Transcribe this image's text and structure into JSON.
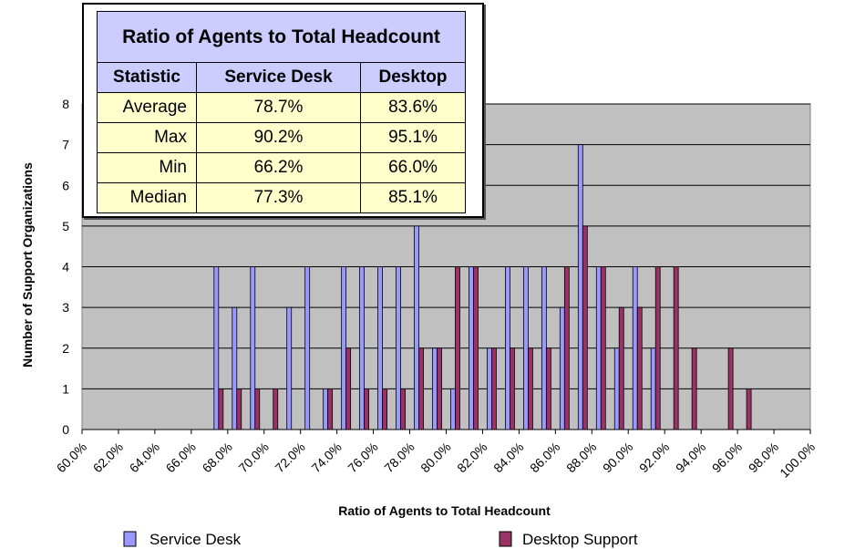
{
  "chart_data": {
    "type": "bar",
    "xlabel": "Ratio of Agents to Total Headcount",
    "ylabel": "Number of Support Organizations",
    "xlim": [
      60.0,
      100.0
    ],
    "x_ticks": [
      "60.0%",
      "62.0%",
      "64.0%",
      "66.0%",
      "68.0%",
      "70.0%",
      "72.0%",
      "74.0%",
      "76.0%",
      "78.0%",
      "80.0%",
      "82.0%",
      "84.0%",
      "86.0%",
      "88.0%",
      "90.0%",
      "92.0%",
      "94.0%",
      "96.0%",
      "98.0%",
      "100.0%"
    ],
    "ylim": [
      0,
      8
    ],
    "y_ticks": [
      0,
      1,
      2,
      3,
      4,
      5,
      6,
      7,
      8
    ],
    "grid": "horizontal",
    "legend_position": "bottom",
    "colors": {
      "plot_background": "#c0c0c0",
      "service_desk": "#9999ff",
      "desktop_support": "#993366"
    },
    "series": [
      {
        "name": "Service Desk",
        "x": [
          67.5,
          68.5,
          69.5,
          71.5,
          72.5,
          73.5,
          74.5,
          75.5,
          76.5,
          77.5,
          78.5,
          79.5,
          80.5,
          81.5,
          82.5,
          83.5,
          84.5,
          85.5,
          86.5,
          87.5,
          88.5,
          89.5,
          90.5,
          91.5
        ],
        "values": [
          4,
          3,
          4,
          3,
          4,
          1,
          4,
          4,
          4,
          4,
          5,
          2,
          1,
          4,
          2,
          4,
          4,
          4,
          3,
          7,
          4,
          2,
          4,
          2
        ]
      },
      {
        "name": "Desktop Support",
        "x": [
          67.5,
          68.5,
          69.5,
          70.5,
          73.5,
          74.5,
          75.5,
          76.5,
          77.5,
          78.5,
          79.5,
          80.5,
          81.5,
          82.5,
          83.5,
          84.5,
          85.5,
          86.5,
          87.5,
          88.5,
          89.5,
          90.5,
          91.5,
          92.5,
          93.5,
          95.5,
          96.5
        ],
        "values": [
          1,
          1,
          1,
          1,
          1,
          2,
          1,
          1,
          1,
          2,
          2,
          4,
          4,
          2,
          2,
          2,
          2,
          4,
          5,
          4,
          3,
          3,
          4,
          4,
          2,
          2,
          1
        ]
      }
    ]
  },
  "stats_table": {
    "title": "Ratio of Agents to Total Headcount",
    "headers": [
      "Statistic",
      "Service Desk",
      "Desktop"
    ],
    "rows": [
      {
        "stat": "Average",
        "service_desk": "78.7%",
        "desktop": "83.6%"
      },
      {
        "stat": "Max",
        "service_desk": "90.2%",
        "desktop": "95.1%"
      },
      {
        "stat": "Min",
        "service_desk": "66.2%",
        "desktop": "66.0%"
      },
      {
        "stat": "Median",
        "service_desk": "77.3%",
        "desktop": "85.1%"
      }
    ]
  }
}
